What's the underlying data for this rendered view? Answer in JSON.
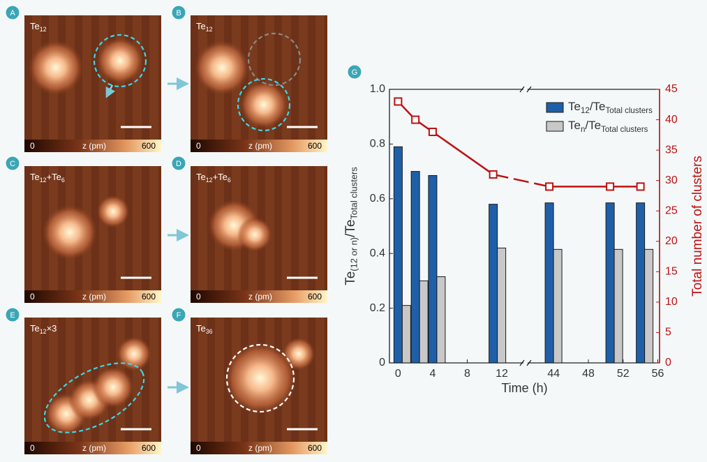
{
  "panels": [
    {
      "letter": "A",
      "label": [
        "Te",
        "12"
      ],
      "colorbar": {
        "min": 0,
        "label": "z (pm)",
        "max": 600
      }
    },
    {
      "letter": "B",
      "label": [
        "Te",
        "12"
      ],
      "colorbar": {
        "min": 0,
        "label": "z (pm)",
        "max": 600
      }
    },
    {
      "letter": "C",
      "label": [
        "Te",
        "12",
        "+Te",
        "6"
      ],
      "colorbar": {
        "min": 0,
        "label": "z (pm)",
        "max": 600
      }
    },
    {
      "letter": "D",
      "label": [
        "Te",
        "12",
        "+Te",
        "6"
      ],
      "colorbar": {
        "min": 0,
        "label": "z (pm)",
        "max": 600
      }
    },
    {
      "letter": "E",
      "label": [
        "Te",
        "12",
        "×3"
      ],
      "colorbar": {
        "min": 0,
        "label": "z (pm)",
        "max": 600
      }
    },
    {
      "letter": "F",
      "label": [
        "Te",
        "36"
      ],
      "colorbar": {
        "min": 0,
        "label": "z (pm)",
        "max": 600
      }
    }
  ],
  "chart_data": {
    "type": "bar",
    "letter": "G",
    "x": [
      0,
      2,
      4,
      11,
      43.5,
      50.5,
      54
    ],
    "xlim": [
      -1,
      56.2
    ],
    "xbreak": [
      14.5,
      41
    ],
    "xticks": [
      0,
      4,
      8,
      12,
      44,
      48,
      52,
      56
    ],
    "xlabel": "Time (h)",
    "ylabel": [
      "Te",
      "(12 or n)",
      "/Te",
      "Total clusters"
    ],
    "y2label": "Total number of clusters",
    "ylim": [
      0,
      1
    ],
    "yticks": [
      0,
      0.2,
      0.4,
      0.6,
      0.8,
      {
        "value": 1,
        "label": "1.0"
      }
    ],
    "y2lim": [
      0,
      45
    ],
    "y2ticks": [
      0,
      5,
      10,
      15,
      20,
      25,
      30,
      35,
      40,
      45
    ],
    "legend": "upper right",
    "series": [
      {
        "name": [
          "Te",
          "12",
          "/Te",
          "Total clusters"
        ],
        "color": "#1f5fa8",
        "values": [
          0.79,
          0.7,
          0.685,
          0.58,
          0.585,
          0.585,
          0.585
        ]
      },
      {
        "name": [
          "Te",
          "n",
          "/Te",
          "Total clusters"
        ],
        "color": "#c8c8c8",
        "values": [
          0.21,
          0.3,
          0.315,
          0.42,
          0.415,
          0.415,
          0.415
        ]
      },
      {
        "type": "line",
        "axis": "y2",
        "color": "#c01010",
        "values": [
          43,
          40,
          38,
          31,
          29,
          29,
          29
        ]
      }
    ]
  }
}
